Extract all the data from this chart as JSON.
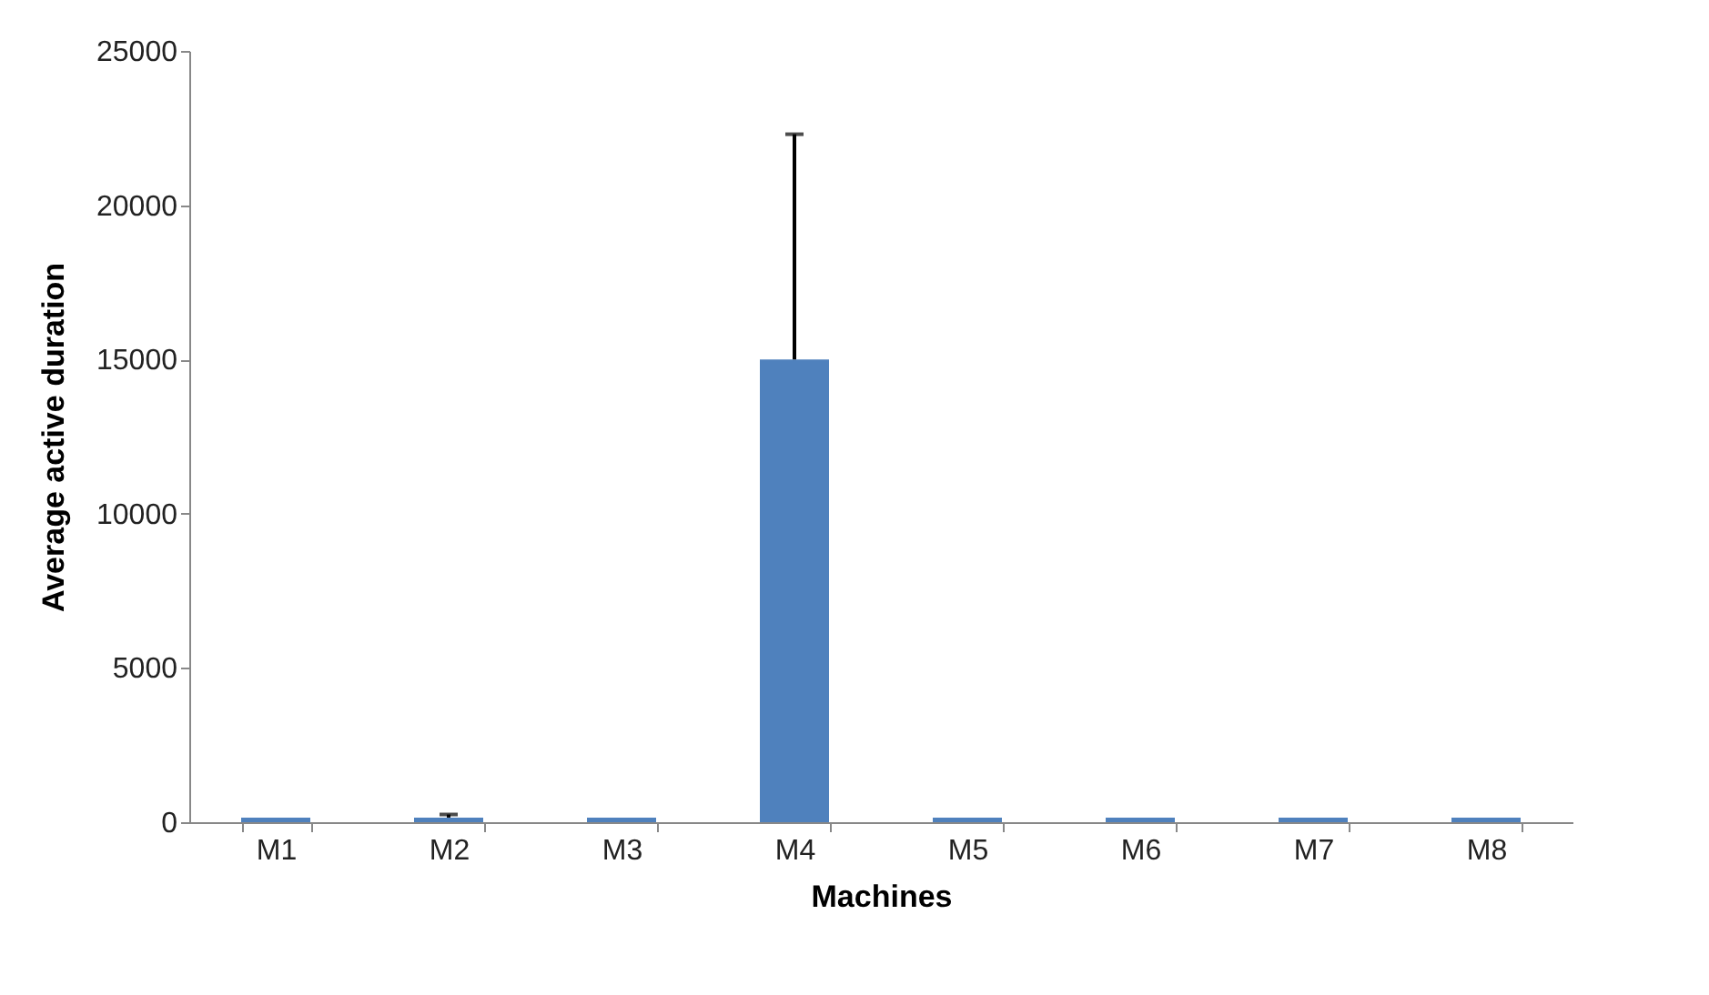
{
  "chart_data": {
    "type": "bar",
    "xlabel": "Machines",
    "ylabel": "Average active duration",
    "categories": [
      "M1",
      "M2",
      "M3",
      "M4",
      "M5",
      "M6",
      "M7",
      "M8"
    ],
    "values": [
      150,
      150,
      150,
      15000,
      150,
      150,
      150,
      150
    ],
    "errors": [
      null,
      [
        150,
        250
      ],
      null,
      [
        15000,
        22300
      ],
      null,
      null,
      null,
      null
    ],
    "color": "#4f81bd",
    "ylim": [
      0,
      25000
    ],
    "yticks": [
      0,
      5000,
      10000,
      15000,
      20000,
      25000
    ],
    "grid": false
  }
}
